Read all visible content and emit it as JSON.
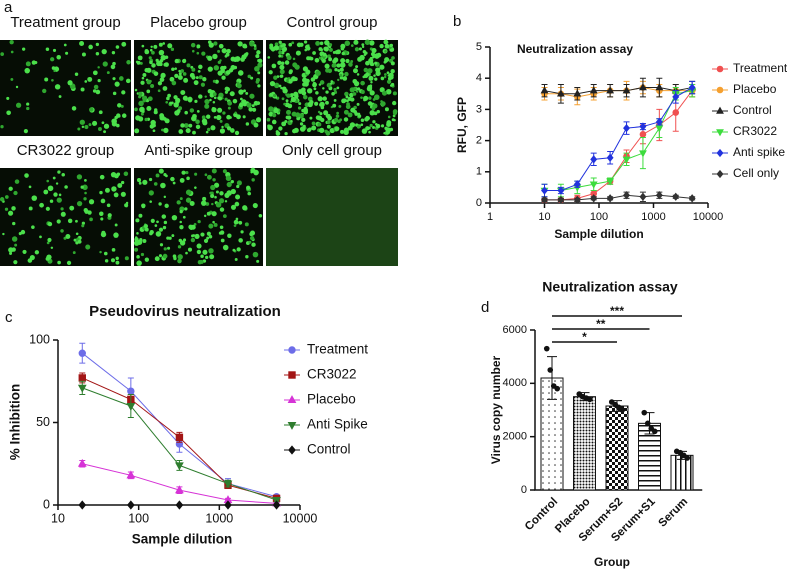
{
  "panel_labels": [
    "a",
    "b",
    "c",
    "d"
  ],
  "micrographs": [
    {
      "label": "Treatment group"
    },
    {
      "label": "Placebo group"
    },
    {
      "label": "Control group"
    },
    {
      "label": "CR3022 group"
    },
    {
      "label": "Anti-spike group"
    },
    {
      "label": "Only cell group"
    }
  ],
  "chart_data": [
    {
      "type": "line",
      "title": "Neutralization assay",
      "x_label": "Sample dilution",
      "y_label": "RFU, GFP",
      "x_scale": "log",
      "xlim": [
        1,
        10000
      ],
      "xticks": [
        1,
        10,
        100,
        1000,
        10000
      ],
      "ylim": [
        0,
        5
      ],
      "yticks": [
        0,
        1,
        2,
        3,
        4,
        5
      ],
      "legend": "right",
      "x": [
        10,
        20,
        40,
        80,
        160,
        320,
        640,
        1280,
        2560,
        5120
      ],
      "series": [
        {
          "name": "Treatment",
          "color": "#f05050",
          "marker": "circle",
          "values": [
            0.1,
            0.1,
            0.15,
            0.3,
            0.7,
            1.5,
            2.2,
            2.5,
            2.9,
            3.6
          ],
          "errors": [
            0.05,
            0.05,
            0.1,
            0.1,
            0.1,
            0.2,
            0.3,
            0.5,
            0.6,
            0.2
          ]
        },
        {
          "name": "Placebo",
          "color": "#f5a030",
          "marker": "circle",
          "values": [
            3.5,
            3.5,
            3.4,
            3.5,
            3.6,
            3.6,
            3.7,
            3.6,
            3.6,
            3.6
          ],
          "errors": [
            0.2,
            0.2,
            0.25,
            0.2,
            0.2,
            0.3,
            0.2,
            0.2,
            0.2,
            0.2
          ]
        },
        {
          "name": "Control",
          "color": "#222222",
          "marker": "triangle",
          "values": [
            3.6,
            3.5,
            3.5,
            3.6,
            3.6,
            3.6,
            3.7,
            3.7,
            3.6,
            3.7
          ],
          "errors": [
            0.2,
            0.3,
            0.2,
            0.2,
            0.2,
            0.2,
            0.3,
            0.3,
            0.2,
            0.2
          ]
        },
        {
          "name": "CR3022",
          "color": "#3ddc3d",
          "marker": "triangle-down",
          "values": [
            0.4,
            0.4,
            0.5,
            0.6,
            0.7,
            1.4,
            1.6,
            2.4,
            3.5,
            3.6
          ],
          "errors": [
            0.2,
            0.2,
            0.2,
            0.2,
            0.1,
            0.2,
            0.5,
            0.3,
            0.2,
            0.2
          ]
        },
        {
          "name": "Anti spike",
          "color": "#2233dd",
          "marker": "diamond",
          "values": [
            0.4,
            0.4,
            0.6,
            1.4,
            1.45,
            2.4,
            2.45,
            2.6,
            3.4,
            3.7
          ],
          "errors": [
            0.2,
            0.1,
            0.1,
            0.2,
            0.2,
            0.2,
            0.1,
            0.1,
            0.2,
            0.2
          ]
        },
        {
          "name": "Cell only",
          "color": "#333333",
          "marker": "diamond",
          "values": [
            0.1,
            0.1,
            0.1,
            0.15,
            0.15,
            0.25,
            0.2,
            0.25,
            0.2,
            0.15
          ],
          "errors": [
            0.05,
            0.05,
            0.05,
            0.05,
            0.05,
            0.1,
            0.15,
            0.1,
            0.05,
            0.05
          ]
        }
      ]
    },
    {
      "type": "line",
      "title": "Pseudovirus neutralization",
      "x_label": "Sample dilution",
      "y_label": "% Inhibition",
      "x_scale": "log",
      "xlim": [
        10,
        10000
      ],
      "xticks": [
        10,
        100,
        1000,
        10000
      ],
      "ylim": [
        0,
        100
      ],
      "yticks": [
        0,
        50,
        100
      ],
      "legend": "right",
      "x": [
        20,
        80,
        320,
        1280,
        5120
      ],
      "series": [
        {
          "name": "Treatment",
          "color": "#6d6de8",
          "marker": "circle",
          "values": [
            92,
            69,
            37,
            13,
            5
          ],
          "errors": [
            6,
            8,
            5,
            3,
            1
          ]
        },
        {
          "name": "CR3022",
          "color": "#a31515",
          "marker": "square",
          "values": [
            77,
            64,
            41,
            12,
            4
          ],
          "errors": [
            3,
            3,
            3,
            2,
            1
          ]
        },
        {
          "name": "Placebo",
          "color": "#d633d6",
          "marker": "triangle",
          "values": [
            25,
            18,
            9,
            3,
            1
          ],
          "errors": [
            2,
            2,
            2,
            1,
            0.5
          ]
        },
        {
          "name": "Anti Spike",
          "color": "#2e7d2e",
          "marker": "triangle-down",
          "values": [
            71,
            60,
            24,
            13,
            3
          ],
          "errors": [
            4,
            7,
            3,
            2,
            1
          ]
        },
        {
          "name": "Control",
          "color": "#111111",
          "marker": "diamond",
          "values": [
            0,
            0,
            0,
            0,
            0
          ]
        }
      ]
    },
    {
      "type": "bar",
      "title": "Neutralization assay",
      "x_label": "Group",
      "y_label": "Virus copy number",
      "ylim": [
        0,
        6000
      ],
      "yticks": [
        0,
        2000,
        4000,
        6000
      ],
      "categories": [
        "Control",
        "Placebo",
        "Serum+S2",
        "Serum+S1",
        "Serum"
      ],
      "values": [
        4200,
        3500,
        3150,
        2500,
        1300
      ],
      "errors": [
        800,
        150,
        200,
        400,
        150
      ],
      "points": [
        [
          5300,
          4500,
          3900,
          3800
        ],
        [
          3600,
          3500,
          3450,
          3400
        ],
        [
          3300,
          3200,
          3100,
          3000
        ],
        [
          2900,
          2500,
          2300,
          2200
        ],
        [
          1450,
          1400,
          1300,
          1200
        ]
      ],
      "significance": [
        {
          "label": "***",
          "groups": [
            "Control",
            "Serum"
          ]
        },
        {
          "label": "**",
          "groups": [
            "Control",
            "Serum+S1"
          ]
        },
        {
          "label": "*",
          "groups": [
            "Control",
            "Serum+S2"
          ]
        }
      ]
    }
  ]
}
